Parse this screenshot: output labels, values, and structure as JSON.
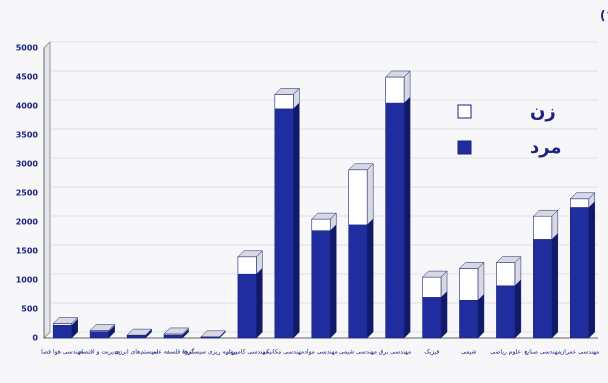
{
  "chart_data": {
    "type": "bar3d_stacked",
    "title": "نمودار آماری تعداد نفرات فارغ التحصیل دانشگاه به تفکیک دانشکده و جنسیت (تا پایان شهریور ماه ۱۳۸۵)",
    "categories": [
      "مهندسی هوا فضا",
      "مدیریت و اقتصاد",
      "سیستم‌های انرژی",
      "گروه فلسفه علم",
      "برنامه ریزی سیستم‌ها",
      "مهندسی کامپیوتر",
      "مهندسی مکانیک",
      "مهندسی مواد",
      "مهندسی شیمی",
      "مهندسی برق",
      "فیزیک",
      "شیمی",
      "علوم ریاضی",
      "مهندسی صنایع",
      "مهندسی عمران"
    ],
    "series": [
      {
        "name": "مرد",
        "color": "#1f2d9e",
        "values": [
          220,
          110,
          40,
          50,
          15,
          1100,
          3950,
          1850,
          1950,
          4050,
          700,
          650,
          900,
          1700,
          2250
        ]
      },
      {
        "name": "زن",
        "color": "#ffffff",
        "values": [
          30,
          20,
          10,
          20,
          5,
          300,
          250,
          200,
          950,
          450,
          350,
          550,
          400,
          400,
          150
        ]
      }
    ],
    "ylim": [
      0,
      5000
    ],
    "yticks": [
      0,
      500,
      1000,
      1500,
      2000,
      2500,
      3000,
      3500,
      4000,
      4500,
      5000
    ],
    "grid": true,
    "legend": "top-right"
  }
}
